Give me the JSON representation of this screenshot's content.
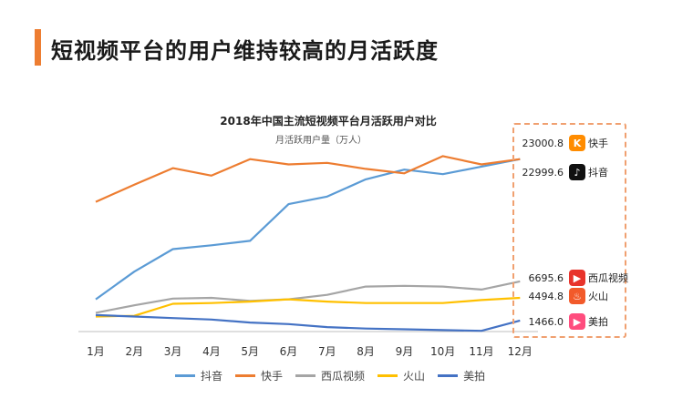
{
  "page": {
    "title": "短视频平台的用户维持较高的月活跃度"
  },
  "colors": {
    "accent": "#ed7d31",
    "douyin": "#5b9bd5",
    "kuaishou": "#ed7d31",
    "xigua": "#a5a5a5",
    "huoshan": "#ffc000",
    "meipai": "#4472c4",
    "callout_border": "#f0a070"
  },
  "chart_data": {
    "type": "line",
    "title": "2018年中国主流短视频平台月活跃用户对比",
    "ylabel": "月活跃用户量（万人）",
    "xlabel": "",
    "ylim": [
      0,
      26000
    ],
    "grid": false,
    "legend_position": "bottom",
    "categories": [
      "1月",
      "2月",
      "3月",
      "4月",
      "5月",
      "6月",
      "7月",
      "8月",
      "9月",
      "10月",
      "11月",
      "12月"
    ],
    "series": [
      {
        "name": "抖音",
        "color": "#5b9bd5",
        "values": [
          4300,
          8000,
          11000,
          11500,
          12100,
          17000,
          18000,
          20300,
          21600,
          21000,
          22000,
          22999.6
        ]
      },
      {
        "name": "快手",
        "color": "#ed7d31",
        "values": [
          17300,
          19600,
          21800,
          20800,
          23000,
          22300,
          22500,
          21700,
          21100,
          23400,
          22300,
          23000.8
        ]
      },
      {
        "name": "西瓜视频",
        "color": "#a5a5a5",
        "values": [
          2500,
          3500,
          4400,
          4500,
          4100,
          4300,
          4900,
          6000,
          6100,
          6000,
          5600,
          6695.6
        ]
      },
      {
        "name": "火山",
        "color": "#ffc000",
        "values": [
          2000,
          2100,
          3700,
          3800,
          4000,
          4300,
          4000,
          3800,
          3800,
          3800,
          4200,
          4494.8
        ]
      },
      {
        "name": "美拍",
        "color": "#4472c4",
        "values": [
          2200,
          2000,
          1800,
          1600,
          1200,
          1000,
          600,
          400,
          300,
          200,
          100,
          1466.0
        ]
      }
    ]
  },
  "callout": {
    "items": [
      {
        "value": "23000.8",
        "name": "快手",
        "icon": "kuaishou-icon",
        "icon_char": "K",
        "icon_color": "#ff8c00"
      },
      {
        "value": "22999.6",
        "name": "抖音",
        "icon": "douyin-icon",
        "icon_char": "♪",
        "icon_color": "#111111"
      },
      {
        "value": "6695.6",
        "name": "西瓜视频",
        "icon": "xigua-icon",
        "icon_char": "▶",
        "icon_color": "#e8332b"
      },
      {
        "value": "4494.8",
        "name": "火山",
        "icon": "huoshan-icon",
        "icon_char": "♨",
        "icon_color": "#f25a2a"
      },
      {
        "value": "1466.0",
        "name": "美拍",
        "icon": "meipai-icon",
        "icon_char": "▶",
        "icon_color": "#ff4d7e"
      }
    ]
  }
}
